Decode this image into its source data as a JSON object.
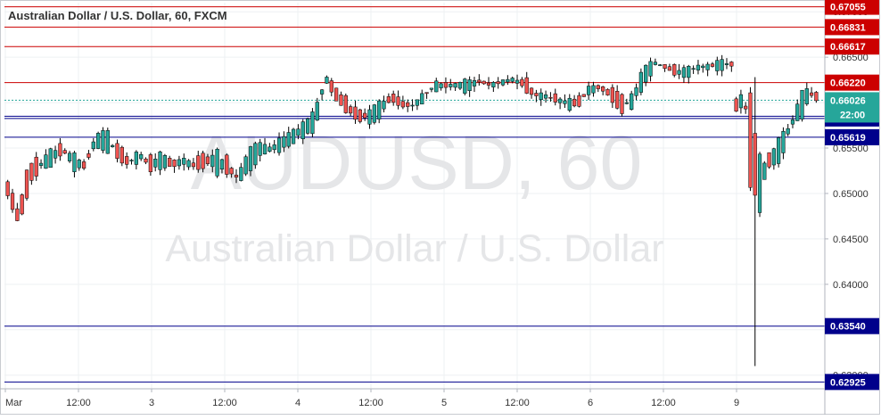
{
  "chart_title": "Australian Dollar / U.S. Dollar, 60, FXCM",
  "watermark": {
    "symbol": "AUDUSD, 60",
    "name": "Australian Dollar / U.S. Dollar"
  },
  "colors": {
    "up": "#26a69a",
    "down": "#ef5350",
    "wick": "#000000",
    "resistance": "#cc0000",
    "support": "#00008b",
    "current": "#26a69a",
    "grid": "#eef0f3",
    "axis_text": "#333333",
    "watermark": "#e5e6e8"
  },
  "chart_data": {
    "type": "candlestick",
    "title": "Australian Dollar / U.S. Dollar, 60, FXCM",
    "ylim": [
      0.6285,
      0.671
    ],
    "y_ticks": [
      "0.63000",
      "0.63500",
      "0.64000",
      "0.64500",
      "0.65000",
      "0.65500",
      "0.66000",
      "0.66500",
      "0.67000"
    ],
    "x_ticks": [
      "Mar",
      "12:00",
      "3",
      "12:00",
      "4",
      "12:00",
      "5",
      "12:00",
      "6",
      "12:00",
      "9"
    ],
    "grid": true,
    "levels": [
      {
        "value": 0.67055,
        "label": "0.67055",
        "role": "resistance"
      },
      {
        "value": 0.66831,
        "label": "0.66831",
        "role": "resistance"
      },
      {
        "value": 0.66617,
        "label": "0.66617",
        "role": "resistance"
      },
      {
        "value": 0.6622,
        "label": "0.66220",
        "role": "resistance"
      },
      {
        "value": 0.6585,
        "label": "",
        "role": "support",
        "axis_label": false
      },
      {
        "value": 0.65825,
        "label": "0.65825",
        "role": "support"
      },
      {
        "value": 0.65619,
        "label": "0.65619",
        "role": "support"
      },
      {
        "value": 0.6354,
        "label": "0.63540",
        "role": "support"
      },
      {
        "value": 0.62925,
        "label": "0.62925",
        "role": "support"
      }
    ],
    "current_price": {
      "value": 0.66026,
      "label": "0.66026",
      "time_label": "22:00"
    },
    "segments": [
      {
        "anchors": [
          [
            0.6512,
            0.6498
          ],
          [
            0.6475,
            0.6468
          ],
          [
            0.6538,
            0.6508
          ],
          [
            0.6535,
            0.653
          ],
          [
            0.6525,
            0.6553
          ],
          [
            0.656,
            0.654
          ],
          [
            0.652,
            0.6548
          ],
          [
            0.6535,
            0.6527
          ],
          [
            0.655,
            0.6565
          ],
          [
            0.6545,
            0.6572
          ],
          [
            0.6552,
            0.654
          ],
          [
            0.654,
            0.653
          ],
          [
            0.6535,
            0.6548
          ],
          [
            0.654,
            0.6525
          ],
          [
            0.6525,
            0.6548
          ],
          [
            0.654,
            0.6526
          ],
          [
            0.6528,
            0.6542
          ],
          [
            0.6535,
            0.6528
          ],
          [
            0.6542,
            0.653
          ],
          [
            0.652,
            0.655
          ],
          [
            0.654,
            0.6522
          ],
          [
            0.6515,
            0.6518
          ],
          [
            0.652,
            0.6552
          ],
          [
            0.6542,
            0.6556
          ],
          [
            0.6546,
            0.6551
          ],
          [
            0.655,
            0.6561
          ],
          [
            0.6558,
            0.6568
          ],
          [
            0.6565,
            0.6577
          ],
          [
            0.657,
            0.6591
          ],
          [
            0.6625,
            0.6629
          ],
          [
            0.662,
            0.6598
          ],
          [
            0.66,
            0.659
          ],
          [
            0.6593,
            0.6578
          ],
          [
            0.658,
            0.659
          ],
          [
            0.6585,
            0.6602
          ],
          [
            0.661,
            0.6602
          ],
          [
            0.66,
            0.6596
          ],
          [
            0.6592,
            0.66
          ],
          [
            0.6605,
            0.661
          ],
          [
            0.6615,
            0.6622
          ],
          [
            0.662,
            0.6618
          ],
          [
            0.6616,
            0.6622
          ],
          [
            0.6614,
            0.6624
          ],
          [
            0.6621,
            0.6625
          ],
          [
            0.6622,
            0.6618
          ],
          [
            0.662,
            0.6624
          ],
          [
            0.6622,
            0.6628
          ],
          [
            0.663,
            0.6615
          ],
          [
            0.6615,
            0.6605
          ],
          [
            0.66,
            0.6612
          ],
          [
            0.661,
            0.66
          ],
          [
            0.6592,
            0.6605
          ],
          [
            0.6603,
            0.6596
          ],
          [
            0.661,
            0.6618
          ],
          [
            0.662,
            0.6615
          ],
          [
            0.6615,
            0.6604
          ],
          [
            0.6605,
            0.659
          ],
          [
            0.6595,
            0.661
          ],
          [
            0.6622,
            0.6638
          ],
          [
            0.664,
            0.6646
          ],
          [
            0.6647,
            0.6634
          ],
          [
            0.6636,
            0.6632
          ],
          [
            0.663,
            0.6638
          ],
          [
            0.6635,
            0.6642
          ],
          [
            0.664,
            0.664
          ],
          [
            0.6635,
            0.6648
          ],
          [
            0.6645,
            0.664
          ]
        ],
        "n": 153
      },
      {
        "anchors": [
          [
            0.6605,
            0.659
          ],
          [
            0.659,
            0.662
          ],
          [
            0.662,
            0.647
          ],
          [
            0.647,
            0.6548
          ],
          [
            0.6548,
            0.6525
          ],
          [
            0.653,
            0.6556
          ],
          [
            0.655,
            0.6568
          ],
          [
            0.6575,
            0.658
          ],
          [
            0.658,
            0.661
          ],
          [
            0.6605,
            0.6615
          ],
          [
            0.661,
            0.6603
          ]
        ],
        "n": 18
      }
    ],
    "spikes": [
      {
        "segment": 1,
        "at": 0.25,
        "low": 0.631,
        "high": 0.6628
      }
    ]
  }
}
